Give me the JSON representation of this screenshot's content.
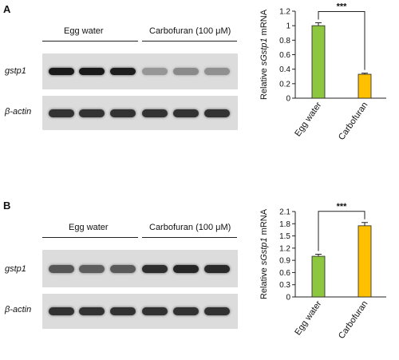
{
  "panels": [
    {
      "letter": "A",
      "group_labels": [
        "Egg water",
        "Carbofuran (100 μM)"
      ],
      "gene_labels": [
        "gstp1",
        "β-actin"
      ],
      "gstp1_intensity": [
        0.92,
        0.92,
        0.9,
        0.3,
        0.36,
        0.33
      ],
      "actin_intensity": [
        0.8,
        0.8,
        0.8,
        0.8,
        0.8,
        0.8
      ],
      "ylabel_parts": [
        "Relative ",
        "sGstp1",
        " mRNA"
      ],
      "significance": "***"
    },
    {
      "letter": "B",
      "group_labels": [
        "Egg water",
        "Carbofuran (100 μM)"
      ],
      "gene_labels": [
        "gstp1",
        "β-actin"
      ],
      "gstp1_intensity": [
        0.62,
        0.58,
        0.6,
        0.82,
        0.86,
        0.84
      ],
      "actin_intensity": [
        0.8,
        0.8,
        0.8,
        0.8,
        0.8,
        0.8
      ],
      "ylabel_parts": [
        "Relative ",
        "sGstp1",
        " mRNA"
      ],
      "significance": "***"
    }
  ],
  "chart_data": [
    {
      "type": "bar",
      "categories": [
        "Egg water",
        "Carbofuran"
      ],
      "values": [
        1.0,
        0.33
      ],
      "errors": [
        0.04,
        0.015
      ],
      "colors": [
        "#8dc63f",
        "#ffc000"
      ],
      "ylabel": "Relative sGstp1 mRNA",
      "ylim": [
        0,
        1.2
      ],
      "yticks": [
        "0",
        "0.2",
        "0.4",
        "0.6",
        "0.8",
        "1",
        "1.2"
      ],
      "annotation": "***"
    },
    {
      "type": "bar",
      "categories": [
        "Egg water",
        "Carbofuran"
      ],
      "values": [
        1.0,
        1.75
      ],
      "errors": [
        0.05,
        0.08
      ],
      "colors": [
        "#8dc63f",
        "#ffc000"
      ],
      "ylabel": "Relative sGstp1 mRNA",
      "ylim": [
        0,
        2.1
      ],
      "yticks": [
        "0",
        "0.3",
        "0.6",
        "0.9",
        "1.2",
        "1.5",
        "1.8",
        "2.1"
      ],
      "annotation": "***"
    }
  ]
}
